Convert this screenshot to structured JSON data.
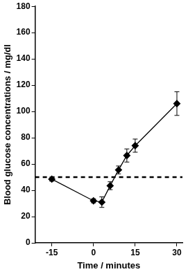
{
  "chart_data": {
    "type": "line",
    "x_label": "Time / minutes",
    "y_label": "Blood glucose concentrations / mg/dl",
    "x": [
      -15,
      0,
      3,
      6,
      9,
      12,
      15,
      30
    ],
    "series": [
      {
        "values": [
          48.5,
          32,
          31,
          43.5,
          55.5,
          66.5,
          74,
          106
        ],
        "errors": [
          1.5,
          1.5,
          4,
          3,
          3,
          5,
          5,
          9
        ],
        "color": "#000000",
        "marker": "diamond",
        "line_style": "solid"
      }
    ],
    "reference_line": {
      "value": 50,
      "line_style": "dashed",
      "color": "#000000"
    },
    "xlim": [
      -21,
      32
    ],
    "xticks": [
      -15,
      0,
      15,
      30
    ],
    "ylim": [
      0,
      180
    ],
    "yticks": [
      0,
      20,
      40,
      60,
      80,
      100,
      120,
      140,
      160,
      180
    ],
    "grid": false
  }
}
